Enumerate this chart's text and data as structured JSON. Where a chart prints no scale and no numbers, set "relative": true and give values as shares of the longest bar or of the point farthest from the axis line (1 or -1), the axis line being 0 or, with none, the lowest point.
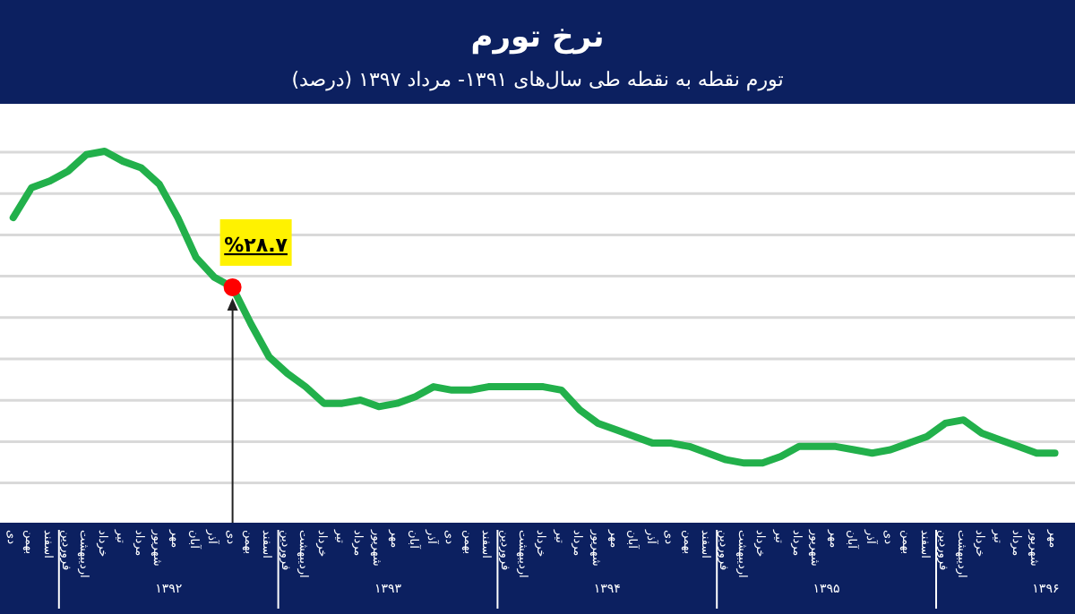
{
  "chart_data": {
    "type": "line",
    "title": "نرخ تورم",
    "subtitle": "تورم نقطه به نقطه طی سال‌های ۱۳۹۱- مرداد ۱۳۹۷ (درصد)",
    "relative": true,
    "grid": true,
    "tick_labels": "x",
    "categories": [
      "دی",
      "بهمن",
      "اسفند",
      "فروردین",
      "اردیبهشت",
      "خرداد",
      "تیر",
      "مرداد",
      "شهریور",
      "مهر",
      "آبان",
      "آذر",
      "دی",
      "بهمن",
      "اسفند",
      "فروردین",
      "اردیبهشت",
      "خرداد",
      "تیر",
      "مرداد",
      "شهریور",
      "مهر",
      "آبان",
      "آذر",
      "دی",
      "بهمن",
      "اسفند",
      "فروردین",
      "اردیبهشت",
      "خرداد",
      "تیر",
      "مرداد",
      "شهریور",
      "مهر",
      "آبان",
      "آذر",
      "دی",
      "بهمن",
      "اسفند",
      "فروردین",
      "اردیبهشت",
      "خرداد",
      "تیر",
      "مرداد",
      "شهریور",
      "مهر",
      "آبان",
      "آذر",
      "دی",
      "بهمن",
      "اسفند",
      "فروردین",
      "اردیبهشت",
      "خرداد",
      "تیر",
      "مرداد",
      "شهریور",
      "مهر"
    ],
    "annotations": [
      "%۲۸.۷",
      "۱۳۹۲",
      "۱۳۹۳",
      "۱۳۹۴",
      "۱۳۹۵",
      "۱۳۹۶"
    ],
    "series": [
      {
        "color": "#22b04b",
        "values": [
          0.8,
          0.89,
          0.91,
          0.94,
          0.99,
          1.0,
          0.97,
          0.95,
          0.9,
          0.8,
          0.68,
          0.62,
          0.59,
          0.48,
          0.38,
          0.33,
          0.29,
          0.24,
          0.24,
          0.25,
          0.23,
          0.24,
          0.26,
          0.29,
          0.28,
          0.28,
          0.29,
          0.29,
          0.29,
          0.29,
          0.28,
          0.22,
          0.18,
          0.16,
          0.14,
          0.12,
          0.12,
          0.11,
          0.09,
          0.07,
          0.06,
          0.06,
          0.08,
          0.11,
          0.11,
          0.11,
          0.1,
          0.09,
          0.1,
          0.12,
          0.14,
          0.18,
          0.19,
          0.15,
          0.13,
          0.11,
          0.09,
          0.09
        ]
      },
      {
        "type": "scatter",
        "color": "#ff0000",
        "values": [
          null,
          null,
          null,
          null,
          null,
          null,
          null,
          null,
          null,
          null,
          null,
          null,
          0.59,
          null,
          null,
          null,
          null,
          null,
          null,
          null,
          null,
          null,
          null,
          null,
          null,
          null,
          null,
          null,
          null,
          null,
          null,
          null,
          null,
          null,
          null,
          null,
          null,
          null,
          null,
          null,
          null,
          null,
          null,
          null,
          null,
          null,
          null,
          null,
          null,
          null,
          null,
          null,
          null,
          null,
          null,
          null,
          null,
          null
        ]
      }
    ]
  }
}
